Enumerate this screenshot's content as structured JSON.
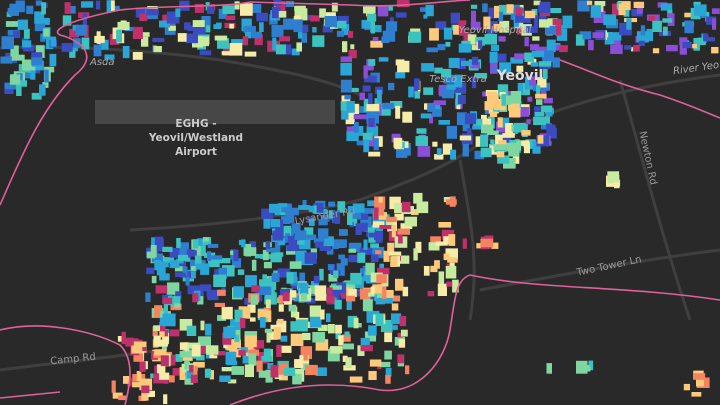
{
  "labels": {
    "asda": "Asda",
    "airport": [
      "EGHG -",
      "Yeovil/Westland",
      "Airport"
    ],
    "town": "Yeovil",
    "tesco": "Tesco Extra",
    "hospital": "Yeovil Hospital",
    "river": "River Yeo",
    "newton": "Newton Rd",
    "lysander": "Lysander Rd",
    "two_tower": "Two Tower Ln",
    "camp": "Camp Rd"
  }
}
